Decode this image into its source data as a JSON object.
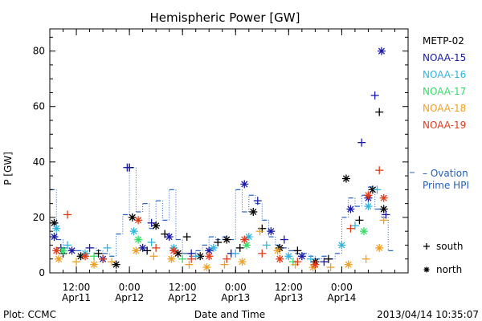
{
  "chart_data": {
    "type": "scatter",
    "title": "Hemispheric Power [GW]",
    "ylabel": "P [GW]",
    "xlabel": "Date and Time",
    "ylim": [
      0,
      88
    ],
    "yticks": [
      "0",
      "20",
      "40",
      "60",
      "80"
    ],
    "yticks_values": [
      0,
      20,
      40,
      60,
      80
    ],
    "xlim": [
      "2013-04-11T06:00",
      "2013-04-14T15:00"
    ],
    "xticks": [
      {
        "t": "2013-04-11T12:00",
        "line1": "12:00",
        "line2": "Apr11"
      },
      {
        "t": "2013-04-12T00:00",
        "line1": "0:00",
        "line2": "Apr12"
      },
      {
        "t": "2013-04-12T12:00",
        "line1": "12:00",
        "line2": "Apr12"
      },
      {
        "t": "2013-04-13T00:00",
        "line1": "0:00",
        "line2": "Apr13"
      },
      {
        "t": "2013-04-13T12:00",
        "line1": "12:00",
        "line2": "Apr13"
      },
      {
        "t": "2013-04-14T00:00",
        "line1": "0:00",
        "line2": "Apr14"
      }
    ],
    "legend_placement": "right",
    "series": [
      {
        "name": "METP-02",
        "color": "#000000",
        "hemisphere": "mixed",
        "points": [
          [
            "2013-04-11T07:00",
            18
          ],
          [
            "2013-04-11T09:00",
            7
          ],
          [
            "2013-04-11T13:00",
            6
          ],
          [
            "2013-04-11T17:00",
            7
          ],
          [
            "2013-04-11T21:00",
            3
          ],
          [
            "2013-04-12T00:00",
            38
          ],
          [
            "2013-04-12T00:40",
            20
          ],
          [
            "2013-04-12T04:00",
            8
          ],
          [
            "2013-04-12T06:00",
            17
          ],
          [
            "2013-04-12T08:00",
            14
          ],
          [
            "2013-04-12T11:00",
            7
          ],
          [
            "2013-04-12T13:00",
            13
          ],
          [
            "2013-04-12T16:00",
            6
          ],
          [
            "2013-04-12T20:00",
            11
          ],
          [
            "2013-04-12T22:00",
            12
          ],
          [
            "2013-04-13T01:00",
            9
          ],
          [
            "2013-04-13T04:00",
            22
          ],
          [
            "2013-04-13T06:00",
            16
          ],
          [
            "2013-04-13T10:00",
            9
          ],
          [
            "2013-04-13T14:00",
            8
          ],
          [
            "2013-04-13T18:00",
            4
          ],
          [
            "2013-04-13T21:00",
            5
          ],
          [
            "2013-04-14T01:00",
            34
          ],
          [
            "2013-04-14T04:00",
            19
          ],
          [
            "2013-04-14T07:00",
            30
          ],
          [
            "2013-04-14T08:30",
            58
          ],
          [
            "2013-04-14T09:30",
            23
          ]
        ]
      },
      {
        "name": "NOAA-15",
        "color": "#1a1aa8",
        "hemisphere": "mixed",
        "points": [
          [
            "2013-04-11T07:00",
            13
          ],
          [
            "2013-04-11T08:30",
            9
          ],
          [
            "2013-04-11T11:00",
            8
          ],
          [
            "2013-04-11T15:00",
            9
          ],
          [
            "2013-04-11T18:00",
            5
          ],
          [
            "2013-04-11T23:30",
            38
          ],
          [
            "2013-04-12T03:00",
            9
          ],
          [
            "2013-04-12T05:00",
            18
          ],
          [
            "2013-04-12T09:00",
            13
          ],
          [
            "2013-04-12T14:00",
            7
          ],
          [
            "2013-04-12T18:00",
            8
          ],
          [
            "2013-04-12T23:00",
            7
          ],
          [
            "2013-04-13T02:00",
            32
          ],
          [
            "2013-04-13T05:00",
            26
          ],
          [
            "2013-04-13T08:00",
            15
          ],
          [
            "2013-04-13T11:00",
            12
          ],
          [
            "2013-04-13T15:00",
            6
          ],
          [
            "2013-04-13T20:00",
            4
          ],
          [
            "2013-04-14T02:00",
            23
          ],
          [
            "2013-04-14T04:30",
            47
          ],
          [
            "2013-04-14T06:00",
            27
          ],
          [
            "2013-04-14T07:30",
            64
          ],
          [
            "2013-04-14T09:00",
            80
          ],
          [
            "2013-04-14T10:00",
            21
          ]
        ]
      },
      {
        "name": "NOAA-16",
        "color": "#33b5dd",
        "hemisphere": "mixed",
        "points": [
          [
            "2013-04-11T07:30",
            16
          ],
          [
            "2013-04-11T10:00",
            10
          ],
          [
            "2013-04-11T14:00",
            7
          ],
          [
            "2013-04-11T19:00",
            9
          ],
          [
            "2013-04-12T01:00",
            15
          ],
          [
            "2013-04-12T05:00",
            11
          ],
          [
            "2013-04-12T10:00",
            9
          ],
          [
            "2013-04-12T15:00",
            6
          ],
          [
            "2013-04-12T19:00",
            9
          ],
          [
            "2013-04-13T00:00",
            7
          ],
          [
            "2013-04-13T03:00",
            13
          ],
          [
            "2013-04-13T07:00",
            10
          ],
          [
            "2013-04-13T12:00",
            6
          ],
          [
            "2013-04-13T17:00",
            5
          ],
          [
            "2013-04-14T00:00",
            10
          ],
          [
            "2013-04-14T03:00",
            17
          ],
          [
            "2013-04-14T06:00",
            24
          ],
          [
            "2013-04-14T08:00",
            30
          ]
        ]
      },
      {
        "name": "NOAA-17",
        "color": "#33dd66",
        "hemisphere": "mixed",
        "points": [
          [
            "2013-04-11T09:00",
            8
          ],
          [
            "2013-04-11T16:00",
            6
          ],
          [
            "2013-04-12T02:00",
            12
          ],
          [
            "2013-04-12T12:00",
            5
          ],
          [
            "2013-04-13T02:30",
            10
          ],
          [
            "2013-04-13T13:00",
            4
          ],
          [
            "2013-04-14T05:00",
            15
          ]
        ]
      },
      {
        "name": "NOAA-18",
        "color": "#f0a020",
        "hemisphere": "mixed",
        "points": [
          [
            "2013-04-11T08:00",
            5
          ],
          [
            "2013-04-11T12:00",
            4
          ],
          [
            "2013-04-11T16:00",
            3
          ],
          [
            "2013-04-11T20:00",
            4
          ],
          [
            "2013-04-12T01:30",
            8
          ],
          [
            "2013-04-12T05:30",
            6
          ],
          [
            "2013-04-12T09:30",
            5
          ],
          [
            "2013-04-12T13:30",
            3
          ],
          [
            "2013-04-12T17:30",
            2
          ],
          [
            "2013-04-12T21:30",
            3
          ],
          [
            "2013-04-13T01:30",
            4
          ],
          [
            "2013-04-13T05:30",
            15
          ],
          [
            "2013-04-13T09:30",
            8
          ],
          [
            "2013-04-13T13:30",
            3
          ],
          [
            "2013-04-13T17:30",
            2
          ],
          [
            "2013-04-13T21:30",
            2
          ],
          [
            "2013-04-14T01:30",
            3
          ],
          [
            "2013-04-14T05:30",
            5
          ],
          [
            "2013-04-14T08:30",
            9
          ],
          [
            "2013-04-14T09:30",
            19
          ]
        ]
      },
      {
        "name": "NOAA-19",
        "color": "#e03b1a",
        "hemisphere": "mixed",
        "points": [
          [
            "2013-04-11T07:30",
            8
          ],
          [
            "2013-04-11T10:00",
            21
          ],
          [
            "2013-04-11T14:00",
            6
          ],
          [
            "2013-04-11T18:00",
            5
          ],
          [
            "2013-04-12T02:00",
            19
          ],
          [
            "2013-04-12T06:00",
            9
          ],
          [
            "2013-04-12T10:00",
            8
          ],
          [
            "2013-04-12T14:00",
            5
          ],
          [
            "2013-04-12T18:00",
            6
          ],
          [
            "2013-04-12T22:00",
            5
          ],
          [
            "2013-04-13T02:00",
            12
          ],
          [
            "2013-04-13T06:00",
            7
          ],
          [
            "2013-04-13T10:00",
            5
          ],
          [
            "2013-04-13T14:00",
            4
          ],
          [
            "2013-04-13T18:00",
            3
          ],
          [
            "2013-04-14T02:00",
            16
          ],
          [
            "2013-04-14T06:00",
            28
          ],
          [
            "2013-04-14T08:30",
            37
          ],
          [
            "2013-04-14T09:30",
            27
          ]
        ]
      }
    ],
    "ovation": {
      "name_line1": "– Ovation",
      "name_line2": "Prime HPI",
      "color": "#2060c0",
      "segments": [
        [
          "2013-04-11T06:00",
          30
        ],
        [
          "2013-04-11T07:30",
          12
        ],
        [
          "2013-04-11T09:00",
          9
        ],
        [
          "2013-04-11T10:30",
          8
        ],
        [
          "2013-04-11T12:00",
          8
        ],
        [
          "2013-04-11T13:30",
          7
        ],
        [
          "2013-04-11T15:00",
          9
        ],
        [
          "2013-04-11T16:30",
          8
        ],
        [
          "2013-04-11T18:00",
          7
        ],
        [
          "2013-04-11T19:30",
          6
        ],
        [
          "2013-04-11T21:00",
          14
        ],
        [
          "2013-04-11T22:30",
          21
        ],
        [
          "2013-04-12T00:00",
          38
        ],
        [
          "2013-04-12T01:30",
          22
        ],
        [
          "2013-04-12T03:00",
          25
        ],
        [
          "2013-04-12T04:30",
          16
        ],
        [
          "2013-04-12T06:00",
          26
        ],
        [
          "2013-04-12T07:30",
          19
        ],
        [
          "2013-04-12T09:00",
          30
        ],
        [
          "2013-04-12T10:30",
          12
        ],
        [
          "2013-04-12T12:00",
          7
        ],
        [
          "2013-04-12T13:30",
          6
        ],
        [
          "2013-04-12T15:00",
          8
        ],
        [
          "2013-04-12T16:30",
          10
        ],
        [
          "2013-04-12T18:00",
          13
        ],
        [
          "2013-04-12T19:30",
          12
        ],
        [
          "2013-04-12T21:00",
          13
        ],
        [
          "2013-04-12T22:30",
          12
        ],
        [
          "2013-04-13T00:00",
          30
        ],
        [
          "2013-04-13T01:30",
          22
        ],
        [
          "2013-04-13T03:00",
          28
        ],
        [
          "2013-04-13T04:30",
          25
        ],
        [
          "2013-04-13T06:00",
          19
        ],
        [
          "2013-04-13T07:30",
          13
        ],
        [
          "2013-04-13T09:00",
          10
        ],
        [
          "2013-04-13T10:30",
          9
        ],
        [
          "2013-04-13T12:00",
          8
        ],
        [
          "2013-04-13T13:30",
          7
        ],
        [
          "2013-04-13T15:00",
          7
        ],
        [
          "2013-04-13T16:30",
          6
        ],
        [
          "2013-04-13T18:00",
          5
        ],
        [
          "2013-04-13T19:30",
          6
        ],
        [
          "2013-04-13T21:00",
          5
        ],
        [
          "2013-04-13T22:30",
          7
        ],
        [
          "2013-04-14T00:00",
          20
        ],
        [
          "2013-04-14T01:30",
          27
        ],
        [
          "2013-04-14T03:00",
          24
        ],
        [
          "2013-04-14T04:30",
          28
        ],
        [
          "2013-04-14T06:00",
          31
        ],
        [
          "2013-04-14T07:30",
          23
        ],
        [
          "2013-04-14T09:00",
          20
        ],
        [
          "2013-04-14T10:30",
          8
        ]
      ]
    },
    "marker_legend": {
      "south_label": "south",
      "north_label": "north"
    },
    "footer_left": "Plot: CCMC",
    "footer_right": "2013/04/14 10:35:07"
  }
}
